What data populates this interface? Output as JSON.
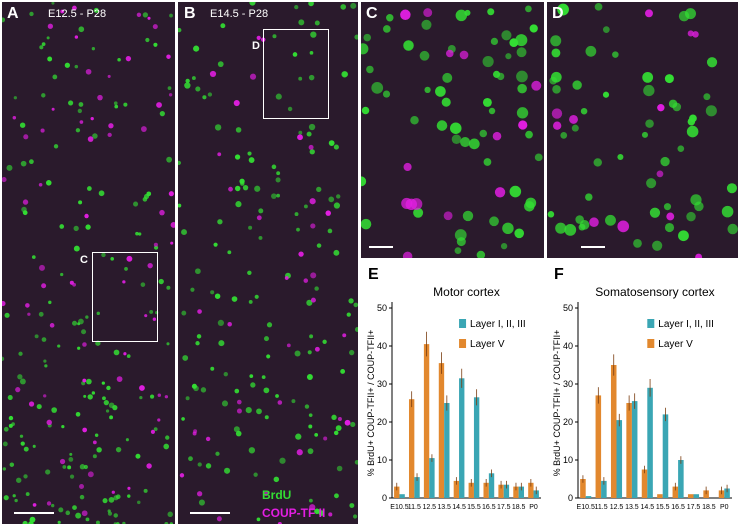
{
  "panels": {
    "a": {
      "label": "A",
      "stage": "E12.5 - P28",
      "inset_label": "C"
    },
    "b": {
      "label": "B",
      "stage": "E14.5 - P28",
      "inset_label": "D"
    },
    "c": {
      "label": "C"
    },
    "d": {
      "label": "D"
    },
    "e": {
      "label": "E"
    },
    "f": {
      "label": "F"
    }
  },
  "stain_legend": {
    "brdu": "BrdU",
    "coup": "COUP-TF II",
    "brdu_color": "#33dd33",
    "coup_color": "#e21ee2"
  },
  "colors": {
    "layer123": "#3aa6b4",
    "layer5": "#e2882e",
    "background_tissue": "#2a1a2c"
  },
  "chart_data": [
    {
      "type": "bar",
      "panel": "E",
      "title": "Motor cortex",
      "ylabel": "% BrdU+ COUP-TFII+ / COUP-TFII+",
      "xlabel": "",
      "ylim": [
        0,
        50
      ],
      "yticks": [
        0,
        10,
        20,
        30,
        40,
        50
      ],
      "categories": [
        "E10.5",
        "11.5",
        "12.5",
        "13.5",
        "14.5",
        "15.5",
        "16.5",
        "17.5",
        "18.5",
        "P0"
      ],
      "series": [
        {
          "name": "Layer V",
          "values": [
            3,
            26,
            40.5,
            35.5,
            4.5,
            4,
            4,
            3.5,
            3,
            4
          ]
        },
        {
          "name": "Layer I, II, III",
          "values": [
            1,
            5.5,
            10.5,
            25,
            31.5,
            26.5,
            6.5,
            3.5,
            3,
            2
          ]
        }
      ]
    },
    {
      "type": "bar",
      "panel": "F",
      "title": "Somatosensory cortex",
      "ylabel": "% BrdU+ COUP-TFII+ / COUP-TFII+",
      "xlabel": "",
      "ylim": [
        0,
        50
      ],
      "yticks": [
        0,
        10,
        20,
        30,
        40,
        50
      ],
      "categories": [
        "E10.5",
        "11.5",
        "12.5",
        "13.5",
        "14.5",
        "15.5",
        "16.5",
        "17.5",
        "18.5",
        "P0"
      ],
      "series": [
        {
          "name": "Layer V",
          "values": [
            5,
            27,
            35,
            25,
            7.5,
            1,
            3,
            1,
            2,
            2
          ]
        },
        {
          "name": "Layer I, II, III",
          "values": [
            0.5,
            4.5,
            20.5,
            25.5,
            29,
            22,
            10,
            1,
            0,
            2.5
          ]
        }
      ]
    }
  ]
}
